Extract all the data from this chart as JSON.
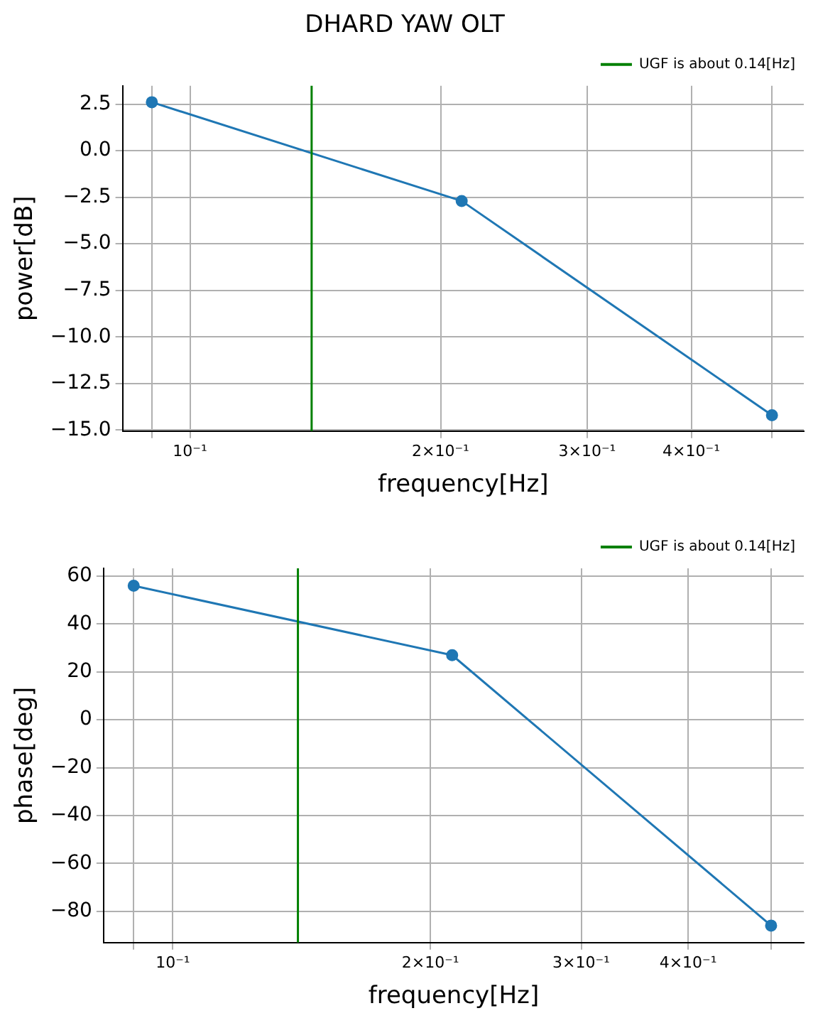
{
  "chart_data": [
    {
      "type": "line",
      "title": "DHARD YAW OLT",
      "xlabel": "frequency[Hz]",
      "ylabel": "power[dB]",
      "x": [
        0.09,
        0.212,
        0.5
      ],
      "series": [
        {
          "color": "#1f77b4",
          "values": [
            2.6,
            -2.7,
            -14.2
          ]
        }
      ],
      "log": "x",
      "xlim": [
        0.083,
        0.546
      ],
      "xticks": [
        {
          "value": 0.09,
          "label": null
        },
        {
          "value": 0.1,
          "label": "10⁻¹"
        },
        {
          "value": 0.2,
          "label": "2×10⁻¹"
        },
        {
          "value": 0.3,
          "label": "3×10⁻¹"
        },
        {
          "value": 0.4,
          "label": "4×10⁻¹"
        },
        {
          "value": 0.5,
          "label": null
        }
      ],
      "ylim": [
        -15.05,
        3.48
      ],
      "yticks": [
        {
          "value": 2.5,
          "label": "2.5"
        },
        {
          "value": 0,
          "label": "0.0"
        },
        {
          "value": -2.5,
          "label": "−2.5"
        },
        {
          "value": -5,
          "label": "−5.0"
        },
        {
          "value": -7.5,
          "label": "−7.5"
        },
        {
          "value": -10,
          "label": "−10.0"
        },
        {
          "value": -12.5,
          "label": "−12.5"
        },
        {
          "value": -15,
          "label": "−15.0"
        }
      ],
      "ref_lines": [
        {
          "axis": "x",
          "value": 0.14,
          "label": "UGF is about 0.14[Hz]",
          "color": "#008000"
        }
      ],
      "grid": true,
      "legend": "top right",
      "marker": "circle",
      "line_style": "solid"
    },
    {
      "type": "line",
      "xlabel": "frequency[Hz]",
      "ylabel": "phase[deg]",
      "x": [
        0.09,
        0.212,
        0.5
      ],
      "series": [
        {
          "color": "#1f77b4",
          "values": [
            56,
            27,
            -86
          ]
        }
      ],
      "log": "x",
      "xlim": [
        0.083,
        0.546
      ],
      "xticks": [
        {
          "value": 0.09,
          "label": null
        },
        {
          "value": 0.1,
          "label": "10⁻¹"
        },
        {
          "value": 0.2,
          "label": "2×10⁻¹"
        },
        {
          "value": 0.3,
          "label": "3×10⁻¹"
        },
        {
          "value": 0.4,
          "label": "4×10⁻¹"
        },
        {
          "value": 0.5,
          "label": null
        }
      ],
      "ylim": [
        -93.1,
        63.3
      ],
      "yticks": [
        {
          "value": 60,
          "label": "60"
        },
        {
          "value": 40,
          "label": "40"
        },
        {
          "value": 20,
          "label": "20"
        },
        {
          "value": 0,
          "label": "0"
        },
        {
          "value": -20,
          "label": "−20"
        },
        {
          "value": -40,
          "label": "−40"
        },
        {
          "value": -60,
          "label": "−60"
        },
        {
          "value": -80,
          "label": "−80"
        }
      ],
      "ref_lines": [
        {
          "axis": "x",
          "value": 0.14,
          "label": "UGF is about 0.14[Hz]",
          "color": "#008000"
        }
      ],
      "grid": true,
      "legend": "top right",
      "marker": "circle",
      "line_style": "solid"
    }
  ]
}
